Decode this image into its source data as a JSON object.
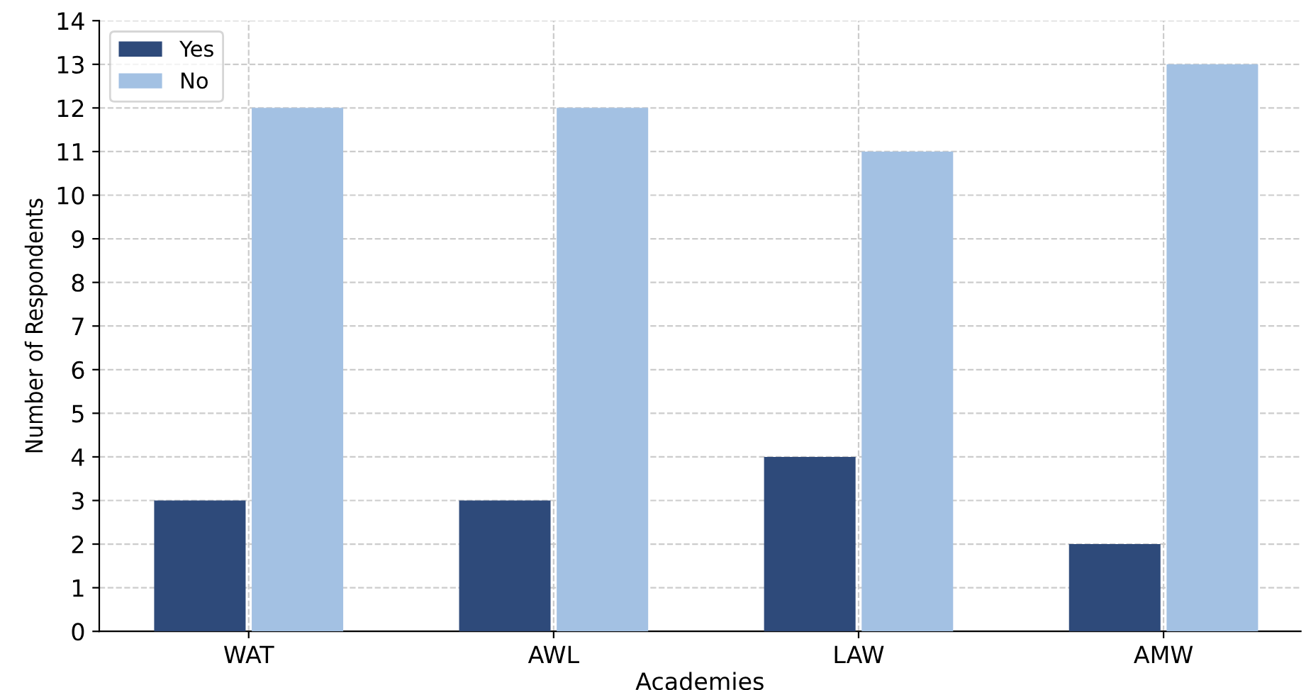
{
  "chart_data": {
    "type": "bar",
    "xlabel": "Academies",
    "ylabel": "Number of Respondents",
    "categories": [
      "WAT",
      "AWL",
      "LAW",
      "AMW"
    ],
    "series": [
      {
        "name": "Yes",
        "color": "#2e4a7a",
        "values": [
          3,
          3,
          4,
          2
        ]
      },
      {
        "name": "No",
        "color": "#a3c1e3",
        "values": [
          12,
          12,
          11,
          13
        ]
      }
    ],
    "ylim": [
      0,
      14
    ],
    "yticks": [
      0,
      1,
      2,
      3,
      4,
      5,
      6,
      7,
      8,
      9,
      10,
      11,
      12,
      13,
      14
    ],
    "grid": true,
    "legend": "top left"
  }
}
